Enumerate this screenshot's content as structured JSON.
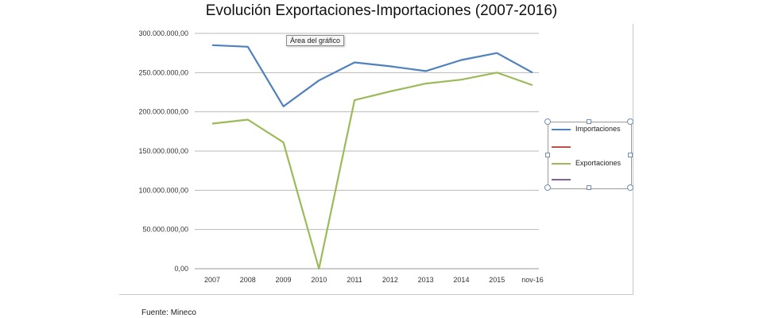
{
  "title": "Evolución Exportaciones-Importaciones (2007-2016)",
  "tooltip": "Área del gráfico",
  "source": "Fuente: Mineco",
  "legend": [
    {
      "label": "Importaciones",
      "color": "#4f81bd"
    },
    {
      "label": "",
      "color": "#c0504d"
    },
    {
      "label": "Exportaciones",
      "color": "#9bbb59"
    },
    {
      "label": "",
      "color": "#8064a2"
    }
  ],
  "chart_data": {
    "type": "line",
    "categories": [
      "2007",
      "2008",
      "2009",
      "2010",
      "2011",
      "2012",
      "2013",
      "2014",
      "2015",
      "nov-16"
    ],
    "yticks": [
      "0,00",
      "50.000.000,00",
      "100.000.000,00",
      "150.000.000,00",
      "200.000.000,00",
      "250.000.000,00",
      "300.000.000,00"
    ],
    "ylim": [
      0,
      300000000
    ],
    "grid": true,
    "legend_position": "right",
    "series": [
      {
        "name": "Importaciones",
        "color": "#4f81bd",
        "values": [
          285000000,
          283000000,
          207000000,
          240000000,
          263000000,
          258000000,
          252000000,
          266000000,
          275000000,
          250000000
        ]
      },
      {
        "name": "Exportaciones",
        "color": "#9bbb59",
        "values": [
          185000000,
          190000000,
          161000000,
          0,
          215000000,
          226000000,
          236000000,
          241000000,
          250000000,
          234000000
        ]
      }
    ]
  }
}
